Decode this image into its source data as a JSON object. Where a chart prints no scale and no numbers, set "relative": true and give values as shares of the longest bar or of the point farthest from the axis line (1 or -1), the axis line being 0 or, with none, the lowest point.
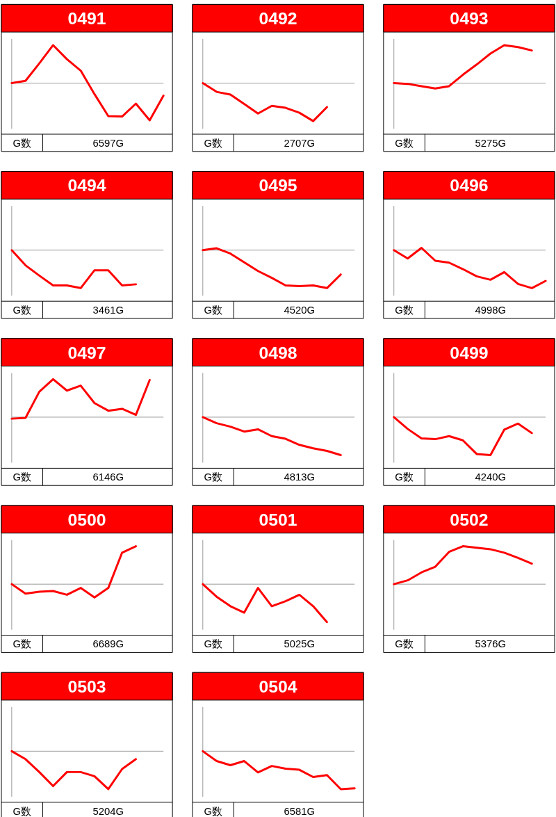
{
  "chart_data": [
    {
      "type": "line",
      "title": "0491",
      "relative": true,
      "categories": [
        null,
        null,
        null,
        null,
        null,
        null,
        null,
        null,
        null,
        null,
        null,
        null
      ],
      "series": [
        {
          "color": "#ff0000",
          "values": [
            0,
            0.06,
            0.52,
            1,
            0.63,
            0.33,
            -0.29,
            -0.87,
            -0.88,
            -0.54,
            -0.98,
            -0.33
          ]
        }
      ],
      "annotations": [
        "G数",
        "6597G"
      ]
    },
    {
      "type": "line",
      "title": "0492",
      "relative": true,
      "categories": [
        null,
        null,
        null,
        null,
        null,
        null,
        null,
        null,
        null,
        null,
        null,
        null
      ],
      "series": [
        {
          "color": "#ff0000",
          "values": [
            0,
            -0.23,
            -0.3,
            -0.55,
            -0.8,
            -0.6,
            -0.65,
            -0.78,
            -1,
            -0.63,
            null,
            null
          ]
        }
      ],
      "annotations": [
        "G数",
        "2707G"
      ]
    },
    {
      "type": "line",
      "title": "0493",
      "relative": true,
      "categories": [
        null,
        null,
        null,
        null,
        null,
        null,
        null,
        null,
        null,
        null,
        null,
        null
      ],
      "series": [
        {
          "color": "#ff0000",
          "values": [
            0,
            -0.02,
            -0.08,
            -0.14,
            -0.08,
            0.22,
            0.49,
            0.78,
            1,
            0.95,
            0.86,
            null
          ]
        }
      ],
      "annotations": [
        "G数",
        "5275G"
      ]
    },
    {
      "type": "line",
      "title": "0494",
      "relative": true,
      "categories": [
        null,
        null,
        null,
        null,
        null,
        null,
        null,
        null,
        null,
        null,
        null,
        null
      ],
      "series": [
        {
          "color": "#ff0000",
          "values": [
            0,
            -0.4,
            -0.67,
            -0.93,
            -0.93,
            -1,
            -0.53,
            -0.53,
            -0.93,
            -0.9,
            null,
            null
          ]
        }
      ],
      "annotations": [
        "G数",
        "3461G"
      ]
    },
    {
      "type": "line",
      "title": "0495",
      "relative": true,
      "categories": [
        null,
        null,
        null,
        null,
        null,
        null,
        null,
        null,
        null,
        null,
        null,
        null
      ],
      "series": [
        {
          "color": "#ff0000",
          "values": [
            0,
            0.05,
            -0.09,
            -0.32,
            -0.55,
            -0.73,
            -0.93,
            -0.95,
            -0.93,
            -1,
            -0.64,
            null
          ]
        }
      ],
      "annotations": [
        "G数",
        "4520G"
      ]
    },
    {
      "type": "line",
      "title": "0496",
      "relative": true,
      "categories": [
        null,
        null,
        null,
        null,
        null,
        null,
        null,
        null,
        null,
        null,
        null,
        null
      ],
      "series": [
        {
          "color": "#ff0000",
          "values": [
            0,
            -0.22,
            0.06,
            -0.28,
            -0.33,
            -0.5,
            -0.69,
            -0.78,
            -0.58,
            -0.89,
            -1,
            -0.81
          ]
        }
      ],
      "annotations": [
        "G数",
        "4998G"
      ]
    },
    {
      "type": "line",
      "title": "0497",
      "relative": true,
      "categories": [
        null,
        null,
        null,
        null,
        null,
        null,
        null,
        null,
        null,
        null,
        null,
        null
      ],
      "series": [
        {
          "color": "#ff0000",
          "values": [
            -0.04,
            -0.02,
            0.67,
            1,
            0.7,
            0.83,
            0.37,
            0.17,
            0.22,
            0.06,
            0.98,
            null
          ]
        }
      ],
      "annotations": [
        "G数",
        "6146G"
      ]
    },
    {
      "type": "line",
      "title": "0498",
      "relative": true,
      "categories": [
        null,
        null,
        null,
        null,
        null,
        null,
        null,
        null,
        null,
        null,
        null,
        null
      ],
      "series": [
        {
          "color": "#ff0000",
          "values": [
            0,
            -0.16,
            -0.25,
            -0.38,
            -0.32,
            -0.5,
            -0.57,
            -0.73,
            -0.82,
            -0.89,
            -1,
            null
          ]
        }
      ],
      "annotations": [
        "G数",
        "4813G"
      ]
    },
    {
      "type": "line",
      "title": "0499",
      "relative": true,
      "categories": [
        null,
        null,
        null,
        null,
        null,
        null,
        null,
        null,
        null,
        null,
        null,
        null
      ],
      "series": [
        {
          "color": "#ff0000",
          "values": [
            0,
            -0.31,
            -0.56,
            -0.58,
            -0.5,
            -0.61,
            -0.97,
            -1,
            -0.33,
            -0.17,
            -0.42,
            null
          ]
        }
      ],
      "annotations": [
        "G数",
        "4240G"
      ]
    },
    {
      "type": "line",
      "title": "0500",
      "relative": true,
      "categories": [
        null,
        null,
        null,
        null,
        null,
        null,
        null,
        null,
        null,
        null,
        null,
        null
      ],
      "series": [
        {
          "color": "#ff0000",
          "values": [
            0,
            -0.25,
            -0.2,
            -0.18,
            -0.28,
            -0.1,
            -0.35,
            -0.1,
            0.83,
            1,
            null,
            null
          ]
        }
      ],
      "annotations": [
        "G数",
        "6689G"
      ]
    },
    {
      "type": "line",
      "title": "0501",
      "relative": true,
      "categories": [
        null,
        null,
        null,
        null,
        null,
        null,
        null,
        null,
        null,
        null,
        null,
        null
      ],
      "series": [
        {
          "color": "#ff0000",
          "values": [
            0,
            -0.33,
            -0.58,
            -0.75,
            -0.1,
            -0.58,
            -0.45,
            -0.28,
            -0.58,
            -1,
            null,
            null
          ]
        }
      ],
      "annotations": [
        "G数",
        "5025G"
      ]
    },
    {
      "type": "line",
      "title": "0502",
      "relative": true,
      "categories": [
        null,
        null,
        null,
        null,
        null,
        null,
        null,
        null,
        null,
        null,
        null,
        null
      ],
      "series": [
        {
          "color": "#ff0000",
          "values": [
            0,
            0.1,
            0.31,
            0.46,
            0.85,
            1,
            0.96,
            0.92,
            0.83,
            0.69,
            0.54,
            null
          ]
        }
      ],
      "annotations": [
        "G数",
        "5376G"
      ]
    },
    {
      "type": "line",
      "title": "0503",
      "relative": true,
      "categories": [
        null,
        null,
        null,
        null,
        null,
        null,
        null,
        null,
        null,
        null,
        null,
        null
      ],
      "series": [
        {
          "color": "#ff0000",
          "values": [
            0,
            -0.21,
            -0.55,
            -0.92,
            -0.55,
            -0.55,
            -0.66,
            -1,
            -0.47,
            -0.21,
            null,
            null
          ]
        }
      ],
      "annotations": [
        "G数",
        "5204G"
      ]
    },
    {
      "type": "line",
      "title": "0504",
      "relative": true,
      "categories": [
        null,
        null,
        null,
        null,
        null,
        null,
        null,
        null,
        null,
        null,
        null,
        null
      ],
      "series": [
        {
          "color": "#ff0000",
          "values": [
            0,
            -0.26,
            -0.37,
            -0.26,
            -0.56,
            -0.39,
            -0.46,
            -0.49,
            -0.68,
            -0.63,
            -1,
            -0.98
          ]
        }
      ],
      "annotations": [
        "G数",
        "6581G"
      ]
    }
  ]
}
